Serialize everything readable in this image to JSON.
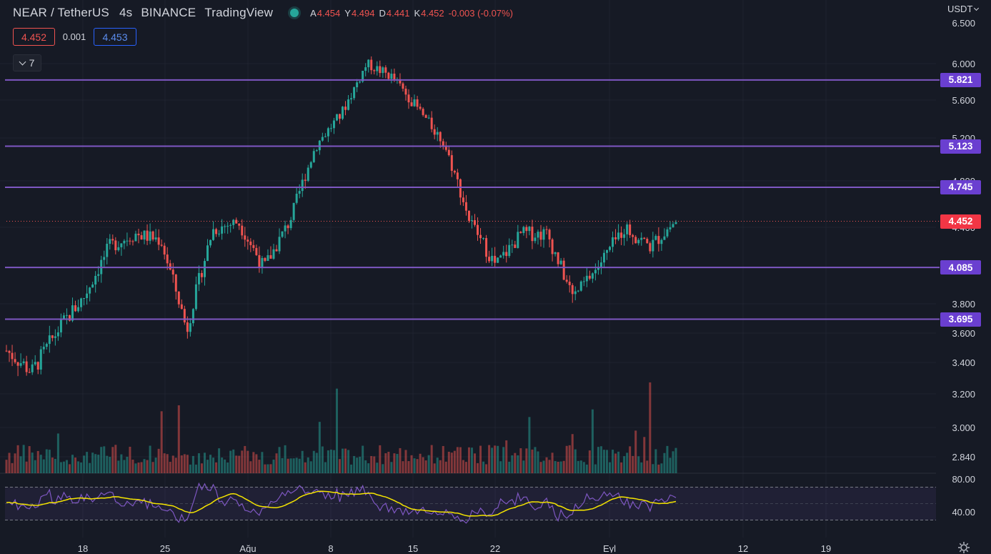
{
  "header": {
    "symbol": "NEAR / TetherUS",
    "interval": "4s",
    "exchange": "BINANCE",
    "platform": "TradingView",
    "ohlc": [
      {
        "k": "A",
        "v": "4.454"
      },
      {
        "k": "Y",
        "v": "4.494"
      },
      {
        "k": "D",
        "v": "4.441"
      },
      {
        "k": "K",
        "v": "4.452"
      }
    ],
    "change": "-0.003 (-0.07%)"
  },
  "trade": {
    "sell": "4.452",
    "spread": "0.001",
    "buy": "4.453"
  },
  "indicators_toggle": {
    "count": "7"
  },
  "currency": "USDT",
  "colors": {
    "background": "#161a25",
    "up": "#26a69a",
    "down": "#ef5350",
    "level": "#7e57c2",
    "rsi_line": "#7e57c2",
    "rsi_ma": "#f5e400"
  },
  "icons": {
    "collapse": "chevron-down-icon",
    "settings": "gear-icon",
    "status": "market-open-dot"
  },
  "chart_data": {
    "type": "candlestick",
    "price_axis": [
      "6.500",
      "6.000",
      "5.600",
      "5.200",
      "4.800",
      "4.400",
      "3.800",
      "3.600",
      "3.400",
      "3.200",
      "3.000",
      "2.840"
    ],
    "x_ticks": [
      "18",
      "25",
      "Ağu",
      "8",
      "15",
      "22",
      "Eyl",
      "12",
      "19"
    ],
    "levels": [
      "5.821",
      "5.123",
      "4.745",
      "4.085",
      "3.695"
    ],
    "last_price": "4.452",
    "price_range": [
      3.6,
      6.0
    ],
    "approx_close_path": [
      3.48,
      3.34,
      3.62,
      3.85,
      4.25,
      4.35,
      4.3,
      3.62,
      4.38,
      4.45,
      4.08,
      4.45,
      5.12,
      5.45,
      6.0,
      5.85,
      5.5,
      5.15,
      4.45,
      4.1,
      4.35,
      4.35,
      3.85,
      4.1,
      4.4,
      4.25,
      4.452
    ],
    "rsi": {
      "axis": [
        "80.00",
        "40.00"
      ],
      "upper_band": 70,
      "lower_band": 30
    },
    "volume": true
  }
}
